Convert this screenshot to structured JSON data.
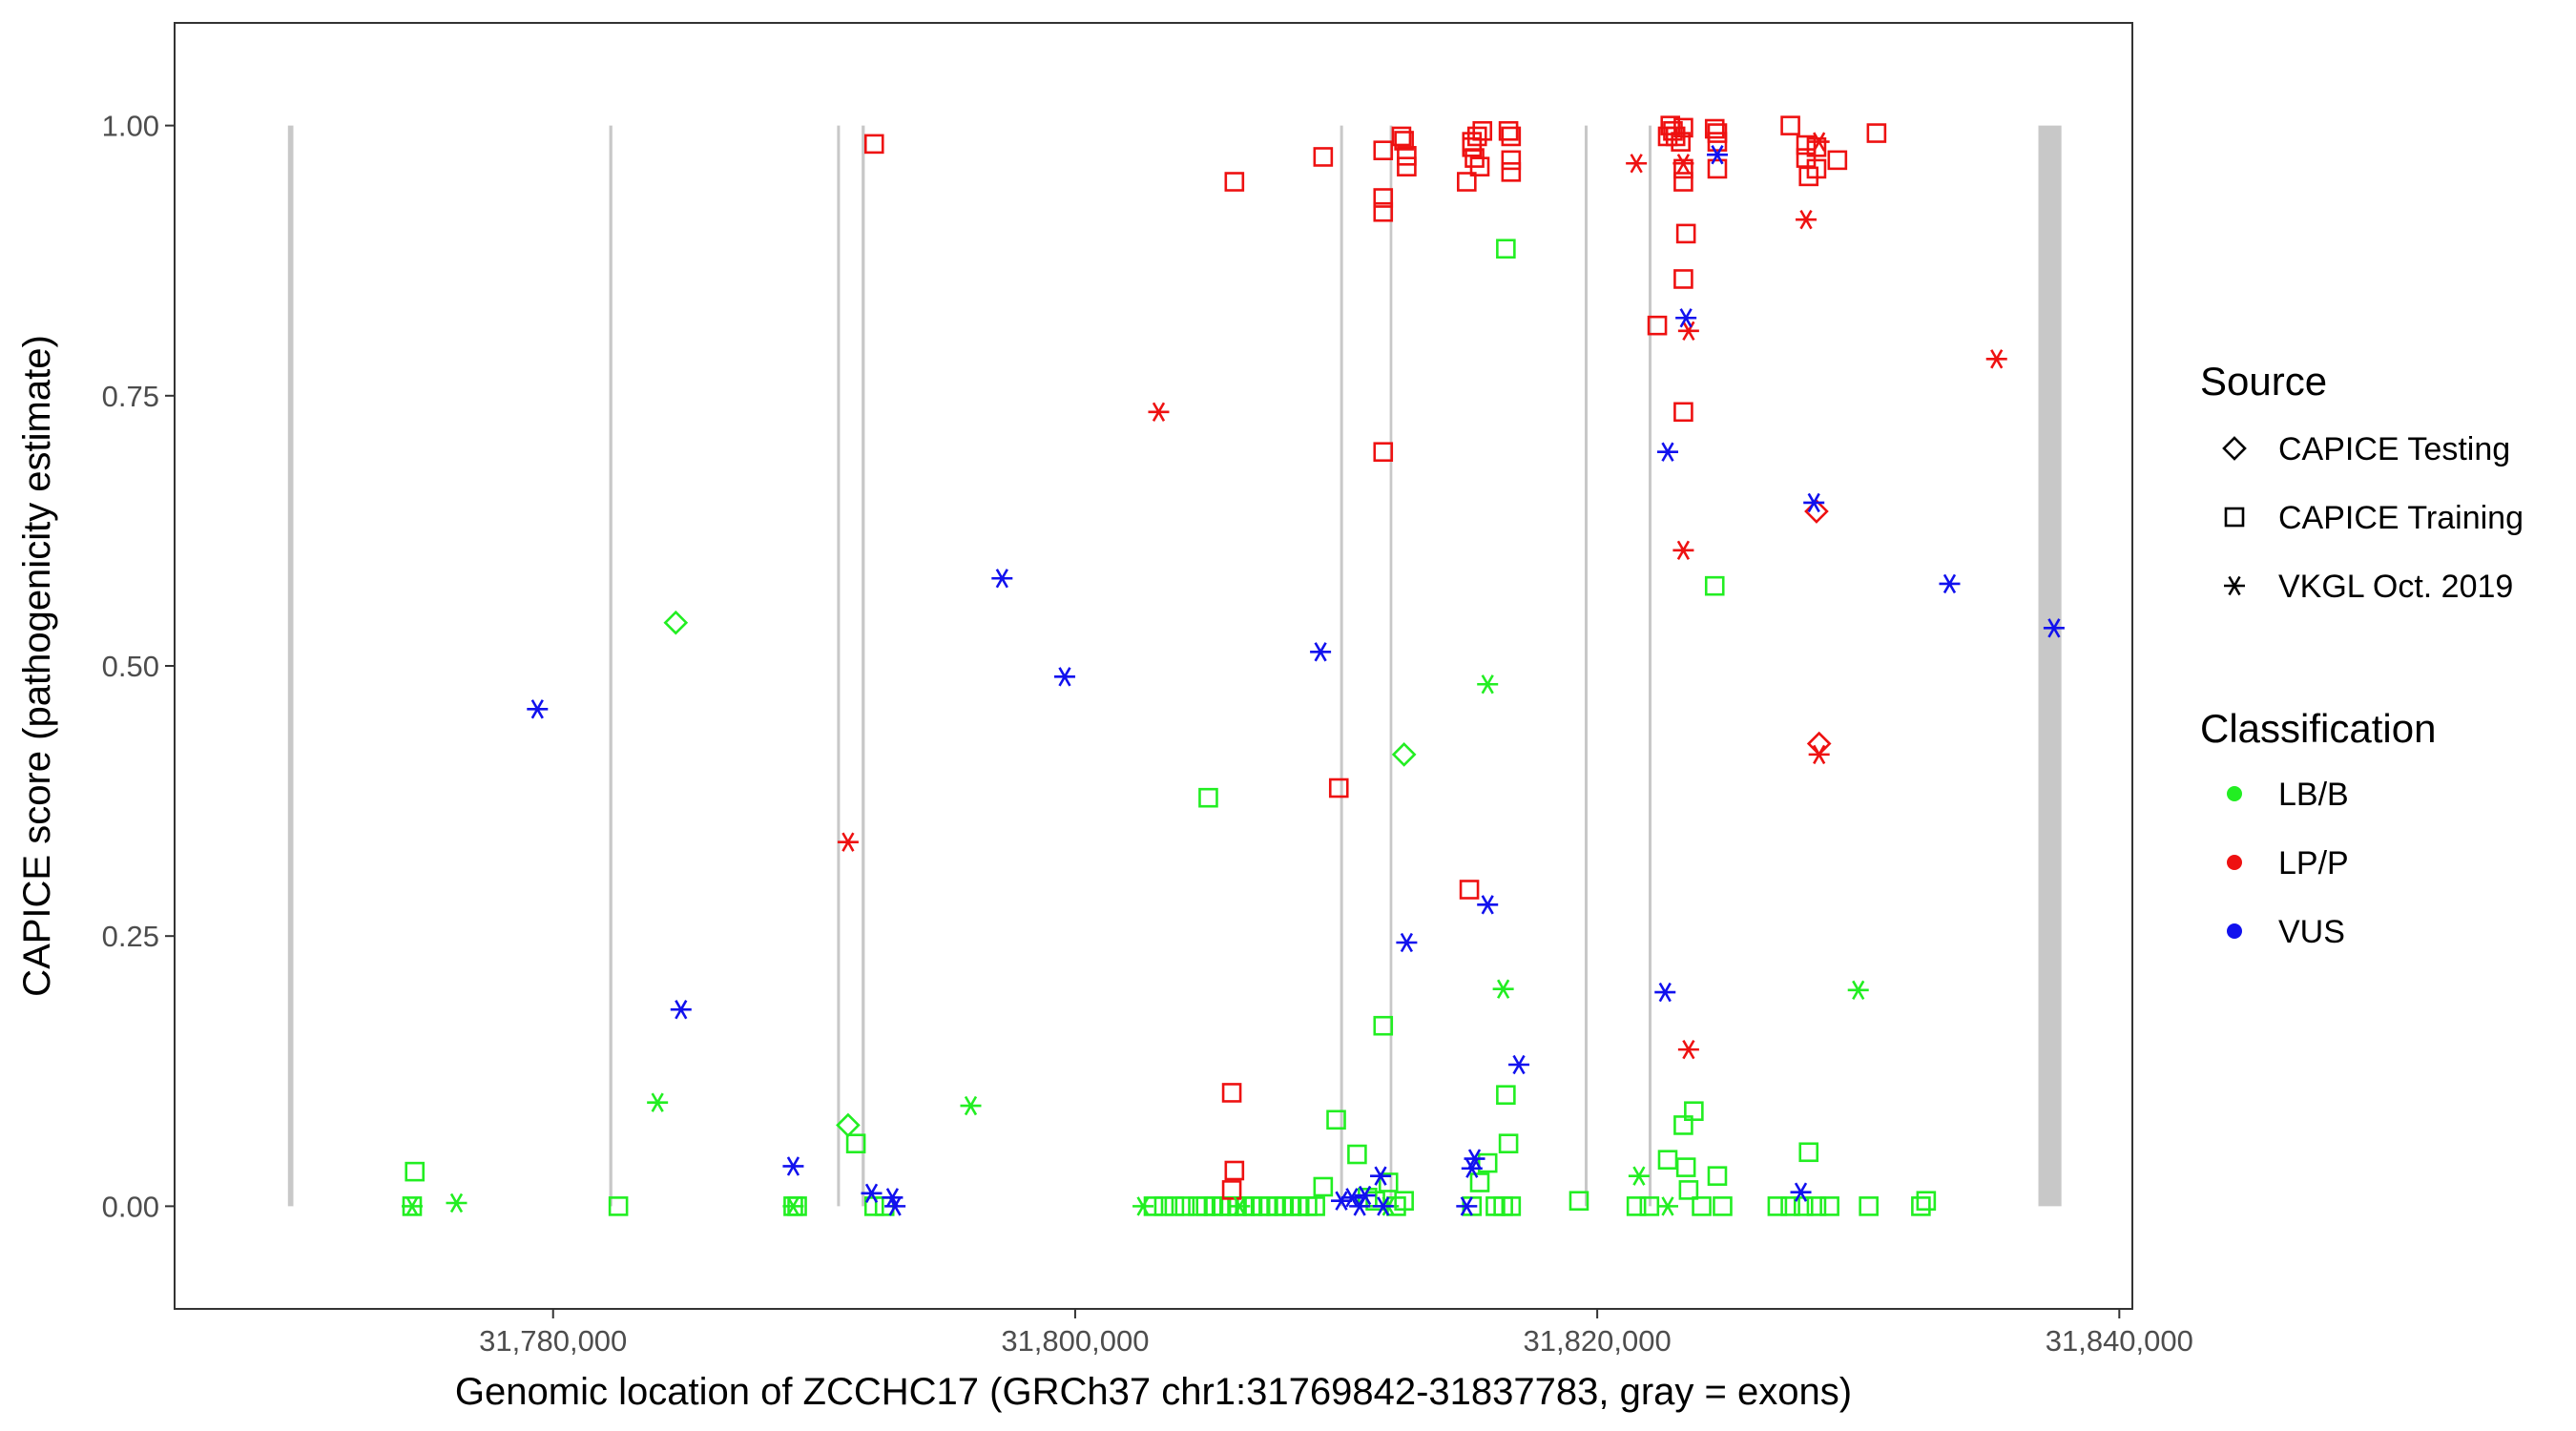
{
  "chart_data": {
    "type": "scatter",
    "title": "",
    "xlabel": "Genomic location of ZCCHC17 (GRCh37 chr1:31769842-31837783, gray = exons)",
    "ylabel": "CAPICE score (pathogenicity estimate)",
    "xlim": [
      31765500,
      31840500
    ],
    "ylim": [
      -0.095,
      1.095
    ],
    "x_ticks": [
      31780000,
      31800000,
      31820000,
      31840000
    ],
    "x_tick_labels": [
      "31,780,000",
      "31,800,000",
      "31,820,000",
      "31,840,000"
    ],
    "y_ticks": [
      0,
      0.25,
      0.5,
      0.75,
      1.0
    ],
    "y_tick_labels": [
      "0.00",
      "0.25",
      "0.50",
      "0.75",
      "1.00"
    ],
    "grid": false,
    "exon_color": "#c8c8c8",
    "exons": [
      [
        31769842,
        31770050
      ],
      [
        31782150,
        31782270
      ],
      [
        31790880,
        31790990
      ],
      [
        31791820,
        31791940
      ],
      [
        31810150,
        31810260
      ],
      [
        31812050,
        31812150
      ],
      [
        31819520,
        31819630
      ],
      [
        31821970,
        31822080
      ],
      [
        31836900,
        31837783
      ]
    ],
    "legend": {
      "position": "right",
      "source_title": "Source",
      "source_items": [
        {
          "label": "CAPICE Testing",
          "shape": "diamond"
        },
        {
          "label": "CAPICE Training",
          "shape": "square"
        },
        {
          "label": "VKGL Oct. 2019",
          "shape": "asterisk"
        }
      ],
      "class_title": "Classification",
      "class_items": [
        {
          "label": "LB/B",
          "color": "#22ee22"
        },
        {
          "label": "LP/P",
          "color": "#ee1111"
        },
        {
          "label": "VUS",
          "color": "#1111ee"
        }
      ]
    },
    "series": [
      {
        "source": "CAPICE Testing",
        "classification": "LB/B",
        "points": [
          [
            31784700,
            0.54
          ],
          [
            31791300,
            0.075
          ],
          [
            31812600,
            0.418
          ]
        ]
      },
      {
        "source": "CAPICE Testing",
        "classification": "LP/P",
        "points": [
          [
            31828400,
            0.643
          ],
          [
            31828500,
            0.428
          ]
        ]
      },
      {
        "source": "CAPICE Training",
        "classification": "LB/B",
        "points": [
          [
            31774700,
            0.032
          ],
          [
            31774600,
            0.0
          ],
          [
            31782500,
            0.0
          ],
          [
            31789200,
            0.0
          ],
          [
            31789350,
            0.0
          ],
          [
            31791600,
            0.058
          ],
          [
            31792300,
            0.0
          ],
          [
            31792700,
            0.0
          ],
          [
            31805100,
            0.378
          ],
          [
            31803000,
            0.0
          ],
          [
            31803400,
            0.0
          ],
          [
            31803800,
            0.0
          ],
          [
            31804200,
            0.0
          ],
          [
            31804700,
            0.0
          ],
          [
            31805000,
            0.0
          ],
          [
            31805300,
            0.0
          ],
          [
            31805600,
            0.0
          ],
          [
            31805900,
            0.0
          ],
          [
            31806200,
            0.0
          ],
          [
            31806500,
            0.0
          ],
          [
            31806800,
            0.0
          ],
          [
            31807100,
            0.0
          ],
          [
            31807400,
            0.0
          ],
          [
            31807700,
            0.0
          ],
          [
            31808000,
            0.0
          ],
          [
            31808300,
            0.0
          ],
          [
            31808600,
            0.0
          ],
          [
            31808900,
            0.0
          ],
          [
            31809200,
            0.0
          ],
          [
            31809500,
            0.018
          ],
          [
            31810000,
            0.08
          ],
          [
            31810800,
            0.048
          ],
          [
            31811200,
            0.008
          ],
          [
            31811500,
            0.005
          ],
          [
            31811800,
            0.167
          ],
          [
            31812000,
            0.022
          ],
          [
            31812300,
            0.0
          ],
          [
            31812600,
            0.005
          ],
          [
            31815200,
            0.0
          ],
          [
            31815500,
            0.022
          ],
          [
            31815800,
            0.04
          ],
          [
            31816100,
            0.0
          ],
          [
            31816400,
            0.0
          ],
          [
            31816700,
            0.0
          ],
          [
            31816500,
            0.103
          ],
          [
            31816600,
            0.058
          ],
          [
            31816500,
            0.886
          ],
          [
            31819300,
            0.005
          ],
          [
            31821500,
            0.0
          ],
          [
            31822000,
            0.0
          ],
          [
            31822700,
            0.043
          ],
          [
            31823300,
            0.075
          ],
          [
            31823500,
            0.015
          ],
          [
            31823400,
            0.036
          ],
          [
            31823700,
            0.088
          ],
          [
            31824000,
            0.0
          ],
          [
            31824600,
            0.028
          ],
          [
            31824500,
            0.574
          ],
          [
            31824800,
            0.0
          ],
          [
            31826900,
            0.0
          ],
          [
            31827400,
            0.0
          ],
          [
            31827900,
            0.0
          ],
          [
            31828400,
            0.0
          ],
          [
            31828900,
            0.0
          ],
          [
            31828100,
            0.05
          ],
          [
            31830400,
            0.0
          ],
          [
            31832400,
            0.0
          ],
          [
            31832600,
            0.005
          ]
        ]
      },
      {
        "source": "CAPICE Training",
        "classification": "LP/P",
        "points": [
          [
            31792300,
            0.983
          ],
          [
            31806100,
            0.948
          ],
          [
            31806000,
            0.105
          ],
          [
            31806100,
            0.033
          ],
          [
            31806000,
            0.015
          ],
          [
            31809500,
            0.971
          ],
          [
            31810100,
            0.387
          ],
          [
            31811800,
            0.977
          ],
          [
            31811800,
            0.933
          ],
          [
            31811800,
            0.92
          ],
          [
            31811800,
            0.698
          ],
          [
            31812500,
            0.99
          ],
          [
            31812600,
            0.986
          ],
          [
            31812700,
            0.972
          ],
          [
            31812700,
            0.962
          ],
          [
            31815100,
            0.293
          ],
          [
            31815000,
            0.948
          ],
          [
            31815200,
            0.98
          ],
          [
            31815400,
            0.99
          ],
          [
            31815600,
            0.995
          ],
          [
            31815300,
            0.97
          ],
          [
            31815500,
            0.962
          ],
          [
            31815200,
            0.985
          ],
          [
            31816600,
            0.995
          ],
          [
            31816700,
            0.99
          ],
          [
            31816700,
            0.968
          ],
          [
            31816700,
            0.957
          ],
          [
            31822300,
            0.815
          ],
          [
            31822700,
            0.99
          ],
          [
            31822800,
            1.0
          ],
          [
            31822900,
            0.995
          ],
          [
            31823000,
            0.99
          ],
          [
            31823300,
            0.998
          ],
          [
            31823200,
            0.985
          ],
          [
            31823300,
            0.948
          ],
          [
            31823300,
            0.96
          ],
          [
            31823400,
            0.9
          ],
          [
            31823300,
            0.858
          ],
          [
            31823300,
            0.735
          ],
          [
            31824500,
            0.997
          ],
          [
            31824600,
            0.993
          ],
          [
            31824600,
            0.985
          ],
          [
            31824600,
            0.96
          ],
          [
            31827400,
            1.0
          ],
          [
            31828000,
            0.982
          ],
          [
            31828000,
            0.97
          ],
          [
            31828100,
            0.953
          ],
          [
            31828400,
            0.96
          ],
          [
            31828400,
            0.98
          ],
          [
            31829200,
            0.968
          ],
          [
            31830700,
            0.993
          ]
        ]
      },
      {
        "source": "VKGL Oct. 2019",
        "classification": "LB/B",
        "points": [
          [
            31774600,
            0.0
          ],
          [
            31776300,
            0.003
          ],
          [
            31784000,
            0.096
          ],
          [
            31789200,
            0.0
          ],
          [
            31796000,
            0.093
          ],
          [
            31802600,
            0.0
          ],
          [
            31806300,
            0.0
          ],
          [
            31812000,
            0.0
          ],
          [
            31815800,
            0.483
          ],
          [
            31816400,
            0.201
          ],
          [
            31821600,
            0.028
          ],
          [
            31822700,
            0.0
          ],
          [
            31830000,
            0.2
          ]
        ]
      },
      {
        "source": "VKGL Oct. 2019",
        "classification": "LP/P",
        "points": [
          [
            31791300,
            0.337
          ],
          [
            31803200,
            0.735
          ],
          [
            31821500,
            0.965
          ],
          [
            31823300,
            0.965
          ],
          [
            31823500,
            0.81
          ],
          [
            31823300,
            0.607
          ],
          [
            31823500,
            0.145
          ],
          [
            31828000,
            0.913
          ],
          [
            31828500,
            0.985
          ],
          [
            31828500,
            0.418
          ],
          [
            31835300,
            0.784
          ]
        ]
      },
      {
        "source": "VKGL Oct. 2019",
        "classification": "VUS",
        "points": [
          [
            31779400,
            0.46
          ],
          [
            31784900,
            0.182
          ],
          [
            31789200,
            0.037
          ],
          [
            31792200,
            0.012
          ],
          [
            31793000,
            0.008
          ],
          [
            31793100,
            0.0
          ],
          [
            31797200,
            0.581
          ],
          [
            31799600,
            0.49
          ],
          [
            31809400,
            0.513
          ],
          [
            31810200,
            0.005
          ],
          [
            31810600,
            0.008
          ],
          [
            31810900,
            0.0
          ],
          [
            31811100,
            0.01
          ],
          [
            31811700,
            0.028
          ],
          [
            31811800,
            0.0
          ],
          [
            31812700,
            0.244
          ],
          [
            31815000,
            0.0
          ],
          [
            31815200,
            0.035
          ],
          [
            31815300,
            0.044
          ],
          [
            31815800,
            0.279
          ],
          [
            31817000,
            0.131
          ],
          [
            31822600,
            0.198
          ],
          [
            31822700,
            0.698
          ],
          [
            31823400,
            0.822
          ],
          [
            31824600,
            0.973
          ],
          [
            31827800,
            0.013
          ],
          [
            31828300,
            0.651
          ],
          [
            31833500,
            0.576
          ],
          [
            31837500,
            0.535
          ]
        ]
      }
    ]
  }
}
